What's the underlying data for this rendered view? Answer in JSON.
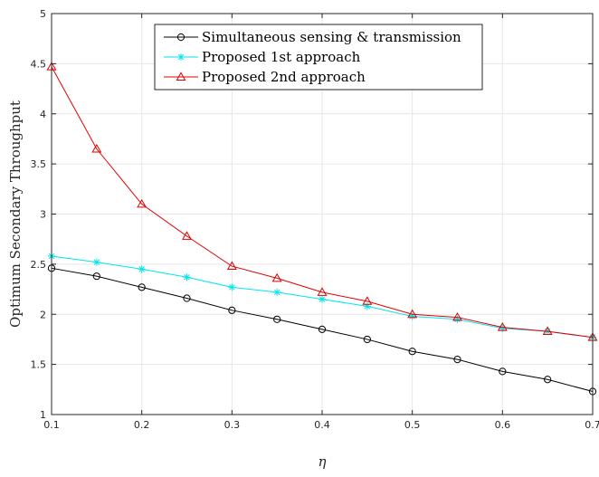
{
  "chart_data": {
    "type": "line",
    "title": "",
    "xlabel": "η",
    "ylabel": "Optimum Secondary Throughput",
    "xlim": [
      0.1,
      0.7
    ],
    "ylim": [
      1,
      5
    ],
    "x_ticks": [
      0.1,
      0.2,
      0.3,
      0.4,
      0.5,
      0.6,
      0.7
    ],
    "x_tick_labels": [
      "0.1",
      "0.2",
      "0.3",
      "0.4",
      "0.5",
      "0.6",
      "0.7"
    ],
    "y_ticks": [
      1,
      1.5,
      2,
      2.5,
      3,
      3.5,
      4,
      4.5,
      5
    ],
    "y_tick_labels": [
      "1",
      "1.5",
      "2",
      "2.5",
      "3",
      "3.5",
      "4",
      "4.5",
      "5"
    ],
    "grid": true,
    "legend_position": "top-center",
    "x": [
      0.1,
      0.15,
      0.2,
      0.25,
      0.3,
      0.35,
      0.4,
      0.45,
      0.5,
      0.55,
      0.6,
      0.65,
      0.7
    ],
    "series": [
      {
        "name": "Simultaneous sensing & transmission",
        "color": "#000000",
        "marker": "circle",
        "values": [
          2.46,
          2.38,
          2.27,
          2.16,
          2.04,
          1.95,
          1.85,
          1.75,
          1.63,
          1.55,
          1.43,
          1.35,
          1.23
        ]
      },
      {
        "name": "Proposed 1st approach",
        "color": "#00e5ee",
        "marker": "asterisk",
        "values": [
          2.58,
          2.52,
          2.45,
          2.37,
          2.27,
          2.22,
          2.15,
          2.08,
          1.98,
          1.95,
          1.86,
          1.83,
          1.77
        ]
      },
      {
        "name": "Proposed 2nd approach",
        "color": "#e00000",
        "marker": "triangle",
        "values": [
          4.47,
          3.65,
          3.1,
          2.78,
          2.48,
          2.36,
          2.22,
          2.13,
          2.0,
          1.97,
          1.87,
          1.83,
          1.77
        ]
      }
    ]
  }
}
